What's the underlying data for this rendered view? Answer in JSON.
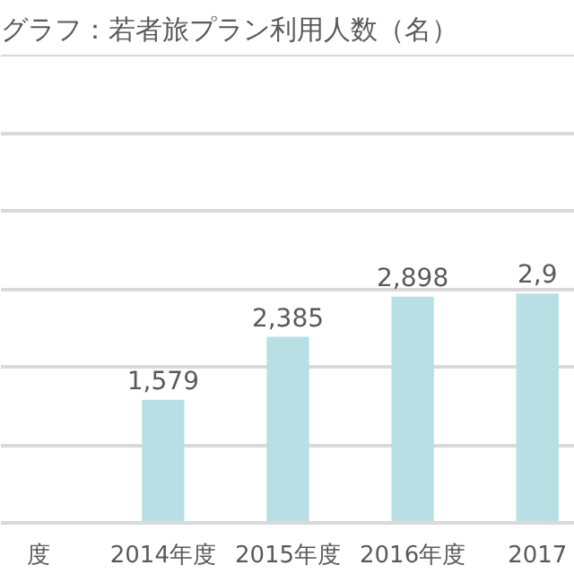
{
  "chart_data": {
    "type": "bar",
    "title": "グラフ：若者旅プラン利用人数（名）",
    "categories": [
      "度",
      "2014年度",
      "2015年度",
      "2016年度",
      "2017"
    ],
    "values": [
      null,
      1579,
      2385,
      2898,
      2940
    ],
    "value_labels": [
      null,
      "1,579",
      "2,385",
      "2,898",
      null
    ],
    "annotations": [
      {
        "text": "2,9",
        "x": "2017",
        "y": 2940
      }
    ],
    "color": "#b8dfe3",
    "ylim": [
      0,
      6000
    ],
    "yticks": [
      {
        "value": 0,
        "label": null
      },
      {
        "value": 1000,
        "label": null
      },
      {
        "value": 2000,
        "label": null
      },
      {
        "value": 3000,
        "label": null
      },
      {
        "value": 4000,
        "label": null
      },
      {
        "value": 5000,
        "label": null
      },
      {
        "value": 6000,
        "label": null
      }
    ],
    "tick_labels": "x",
    "grid": "y"
  }
}
